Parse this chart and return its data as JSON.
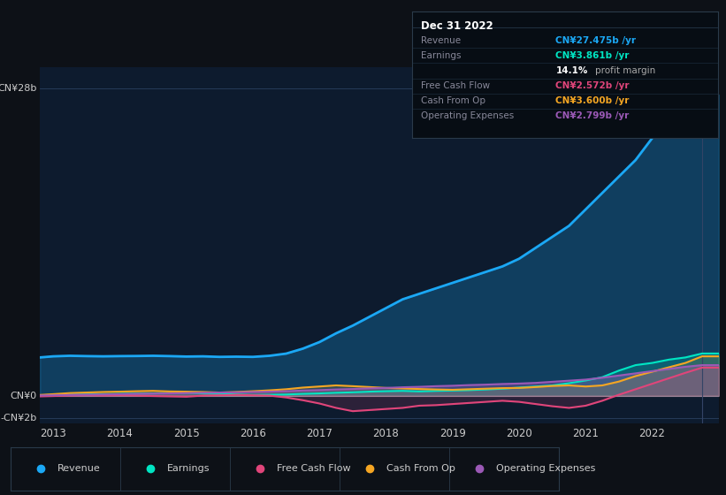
{
  "bg_color": "#0d1117",
  "plot_bg_color": "#0d1b2e",
  "text_color": "#cccccc",
  "years": [
    2012.8,
    2013.0,
    2013.25,
    2013.5,
    2013.75,
    2014.0,
    2014.25,
    2014.5,
    2014.75,
    2015.0,
    2015.25,
    2015.5,
    2015.75,
    2016.0,
    2016.25,
    2016.5,
    2016.75,
    2017.0,
    2017.25,
    2017.5,
    2017.75,
    2018.0,
    2018.25,
    2018.5,
    2018.75,
    2019.0,
    2019.25,
    2019.5,
    2019.75,
    2020.0,
    2020.25,
    2020.5,
    2020.75,
    2021.0,
    2021.25,
    2021.5,
    2021.75,
    2022.0,
    2022.25,
    2022.5,
    2022.75,
    2023.0
  ],
  "revenue": [
    3.5,
    3.6,
    3.65,
    3.62,
    3.6,
    3.62,
    3.63,
    3.65,
    3.62,
    3.58,
    3.6,
    3.55,
    3.57,
    3.55,
    3.65,
    3.85,
    4.3,
    4.9,
    5.7,
    6.4,
    7.2,
    8.0,
    8.8,
    9.3,
    9.8,
    10.3,
    10.8,
    11.3,
    11.8,
    12.5,
    13.5,
    14.5,
    15.5,
    17.0,
    18.5,
    20.0,
    21.5,
    23.5,
    25.0,
    26.5,
    27.475,
    27.475
  ],
  "earnings": [
    0.05,
    0.08,
    0.1,
    0.12,
    0.15,
    0.18,
    0.2,
    0.22,
    0.25,
    0.28,
    0.22,
    0.18,
    0.12,
    0.08,
    0.1,
    0.12,
    0.18,
    0.22,
    0.28,
    0.32,
    0.38,
    0.42,
    0.45,
    0.4,
    0.45,
    0.48,
    0.52,
    0.58,
    0.65,
    0.75,
    0.85,
    0.95,
    1.15,
    1.4,
    1.7,
    2.3,
    2.8,
    3.0,
    3.3,
    3.5,
    3.861,
    3.861
  ],
  "free_cash_flow": [
    -0.05,
    -0.02,
    0.02,
    0.05,
    0.02,
    0.05,
    0.02,
    -0.02,
    -0.05,
    -0.08,
    0.02,
    0.05,
    0.08,
    0.05,
    0.02,
    -0.15,
    -0.4,
    -0.7,
    -1.1,
    -1.4,
    -1.3,
    -1.2,
    -1.1,
    -0.9,
    -0.85,
    -0.75,
    -0.65,
    -0.55,
    -0.45,
    -0.55,
    -0.75,
    -0.95,
    -1.1,
    -0.9,
    -0.45,
    0.1,
    0.6,
    1.1,
    1.6,
    2.1,
    2.572,
    2.572
  ],
  "cash_from_op": [
    0.08,
    0.15,
    0.25,
    0.3,
    0.35,
    0.38,
    0.42,
    0.45,
    0.4,
    0.38,
    0.35,
    0.3,
    0.35,
    0.42,
    0.5,
    0.6,
    0.75,
    0.85,
    0.95,
    0.88,
    0.8,
    0.72,
    0.68,
    0.62,
    0.58,
    0.55,
    0.6,
    0.65,
    0.7,
    0.72,
    0.8,
    0.9,
    0.95,
    0.85,
    0.95,
    1.3,
    1.8,
    2.2,
    2.6,
    3.0,
    3.6,
    3.6
  ],
  "operating_expenses": [
    0.03,
    0.05,
    0.08,
    0.1,
    0.12,
    0.15,
    0.18,
    0.2,
    0.22,
    0.25,
    0.28,
    0.3,
    0.32,
    0.35,
    0.38,
    0.42,
    0.48,
    0.52,
    0.58,
    0.62,
    0.68,
    0.72,
    0.78,
    0.82,
    0.88,
    0.92,
    0.98,
    1.02,
    1.08,
    1.12,
    1.18,
    1.28,
    1.38,
    1.48,
    1.65,
    1.85,
    2.05,
    2.25,
    2.45,
    2.65,
    2.799,
    2.799
  ],
  "revenue_color": "#1ba8f5",
  "earnings_color": "#00e5c3",
  "free_cash_flow_color": "#e0457a",
  "cash_from_op_color": "#f5a623",
  "operating_expenses_color": "#9b59b6",
  "ylim": [
    -2.5,
    30
  ],
  "xticks": [
    2013,
    2014,
    2015,
    2016,
    2017,
    2018,
    2019,
    2020,
    2021,
    2022
  ],
  "info_box": {
    "title": "Dec 31 2022",
    "rows": [
      {
        "label": "Revenue",
        "value": "CN¥27.475b /yr",
        "value_color": "#1ba8f5"
      },
      {
        "label": "Earnings",
        "value": "CN¥3.861b /yr",
        "value_color": "#00e5c3"
      },
      {
        "label": "",
        "value": "14.1% profit margin",
        "value_color": "#ffffff",
        "bold_part": "14.1%"
      },
      {
        "label": "Free Cash Flow",
        "value": "CN¥2.572b /yr",
        "value_color": "#e0457a"
      },
      {
        "label": "Cash From Op",
        "value": "CN¥3.600b /yr",
        "value_color": "#f5a623"
      },
      {
        "label": "Operating Expenses",
        "value": "CN¥2.799b /yr",
        "value_color": "#9b59b6"
      }
    ]
  },
  "legend_items": [
    {
      "label": "Revenue",
      "color": "#1ba8f5"
    },
    {
      "label": "Earnings",
      "color": "#00e5c3"
    },
    {
      "label": "Free Cash Flow",
      "color": "#e0457a"
    },
    {
      "label": "Cash From Op",
      "color": "#f5a623"
    },
    {
      "label": "Operating Expenses",
      "color": "#9b59b6"
    }
  ]
}
